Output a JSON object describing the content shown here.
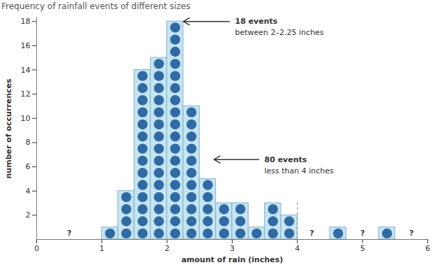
{
  "chart_data": {
    "type": "histogram",
    "title": "Frequency of rainfall events of different sizes",
    "x_label": "amount of rain (inches)",
    "y_label": "number of occurrences",
    "bins": [
      1.0,
      1.25,
      1.5,
      1.75,
      2.0,
      2.25,
      2.5,
      2.75,
      3.0,
      3.25,
      3.5,
      3.75,
      4.0,
      4.25,
      4.5,
      4.75,
      5.0,
      5.25,
      5.5
    ],
    "values": [
      1,
      4,
      14,
      15,
      18,
      11,
      5,
      3,
      3,
      1,
      3,
      2,
      0,
      0,
      1,
      0,
      0,
      1
    ],
    "color": "#c6e4f1",
    "marker": "circle",
    "xlim": [
      0,
      6
    ],
    "xticks": [
      0,
      1,
      2,
      3,
      4,
      5,
      6
    ],
    "ylim": [
      0,
      18.3
    ],
    "yticks": [
      2,
      4,
      6,
      8,
      10,
      12,
      14,
      16,
      18
    ],
    "grid": false,
    "reference_line": {
      "x": 4,
      "y_end": 3.1
    },
    "annotations": [
      {
        "text": "18 events",
        "subtext": "between 2–2.25 inches",
        "x": 2.25,
        "y": 18,
        "text_x": 3.0
      },
      {
        "text": "80 events",
        "subtext": "less than 4 inches",
        "x": 2.72,
        "y": 6.6,
        "text_x": 3.45
      }
    ],
    "markers": [
      {
        "text": "?",
        "x": 0.5,
        "y": 0.5
      },
      {
        "text": "?",
        "x": 4.22,
        "y": 0.5
      },
      {
        "text": "?",
        "x": 5.0,
        "y": 0.5
      },
      {
        "text": "?",
        "x": 5.75,
        "y": 0.5
      }
    ]
  }
}
